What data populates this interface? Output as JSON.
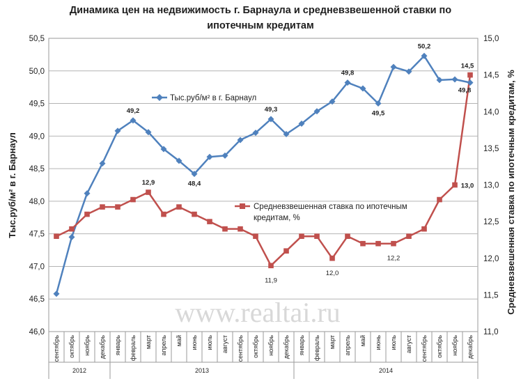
{
  "chart_data": {
    "type": "line",
    "title": "Динамика цен на недвижимость г. Барнаула и средневзвешенной ставки по ипотечным кредитам",
    "title_lines": [
      "Динамика цен на недвижимость г. Барнаула и средневзвешенной ставки по",
      "ипотечным кредитам"
    ],
    "ylabel_left": "Тыс.руб/м² в г. Барнаул",
    "ylabel_right": "Средневзвешенная ставка по ипотечным кредитам, %",
    "ylim_left": [
      46.0,
      50.5
    ],
    "yticks_left": [
      "46,0",
      "46,5",
      "47,0",
      "47,5",
      "48,0",
      "48,5",
      "49,0",
      "49,5",
      "50,0",
      "50,5"
    ],
    "ylim_right": [
      11.0,
      15.0
    ],
    "yticks_right": [
      "11,0",
      "11,5",
      "12,0",
      "12,5",
      "13,0",
      "13,5",
      "14,0",
      "14,5",
      "15,0"
    ],
    "categories": [
      "сентябрь",
      "октябрь",
      "ноябрь",
      "декабрь",
      "январь",
      "февраль",
      "март",
      "апрель",
      "май",
      "июнь",
      "июль",
      "август",
      "сентябрь",
      "октябрь",
      "ноябрь",
      "декабрь",
      "январь",
      "февраль",
      "март",
      "апрель",
      "май",
      "июнь",
      "июль",
      "август",
      "сентябрь",
      "октябрь",
      "ноябрь",
      "декабрь"
    ],
    "years": [
      {
        "label": "2012",
        "start": 0,
        "end": 3
      },
      {
        "label": "2013",
        "start": 4,
        "end": 15
      },
      {
        "label": "2014",
        "start": 16,
        "end": 27
      }
    ],
    "grid": true,
    "series": [
      {
        "name": "Тыс.руб/м² в г. Барнаул",
        "axis": "left",
        "color": "#4f81bd",
        "marker": "diamond",
        "values": [
          46.58,
          47.45,
          48.12,
          48.58,
          49.08,
          49.24,
          49.06,
          48.8,
          48.62,
          48.42,
          48.68,
          48.7,
          48.94,
          49.05,
          49.26,
          49.03,
          49.19,
          49.38,
          49.53,
          49.82,
          49.73,
          49.5,
          50.06,
          49.99,
          50.23,
          49.86,
          49.87,
          49.82
        ],
        "labels": [
          {
            "index": 5,
            "text": "49,2"
          },
          {
            "index": 9,
            "text": "48,4"
          },
          {
            "index": 14,
            "text": "49,3"
          },
          {
            "index": 19,
            "text": "49,8"
          },
          {
            "index": 21,
            "text": "49,5"
          },
          {
            "index": 24,
            "text": "50,2"
          },
          {
            "index": 27,
            "text": "49,8"
          }
        ]
      },
      {
        "name": "Средневзвешенная ставка по ипотечным кредитам, %",
        "name_lines": [
          "Средневзвешенная ставка по ипотечным",
          "кредитам, %"
        ],
        "axis": "right",
        "color": "#c0504d",
        "marker": "square",
        "values": [
          12.3,
          12.4,
          12.6,
          12.7,
          12.7,
          12.8,
          12.9,
          12.6,
          12.7,
          12.6,
          12.5,
          12.4,
          12.4,
          12.3,
          11.9,
          12.1,
          12.3,
          12.3,
          12.0,
          12.3,
          12.2,
          12.2,
          12.2,
          12.3,
          12.4,
          12.8,
          13.0,
          14.5
        ],
        "labels": [
          {
            "index": 6,
            "text": "12,9"
          },
          {
            "index": 14,
            "text": "11,9"
          },
          {
            "index": 18,
            "text": "12,0"
          },
          {
            "index": 22,
            "text": "12,2"
          },
          {
            "index": 26,
            "text": "13,0"
          },
          {
            "index": 27,
            "text": "14,5"
          }
        ]
      }
    ],
    "legend_placement": "inside plot"
  },
  "watermark": "www.realtai.ru"
}
